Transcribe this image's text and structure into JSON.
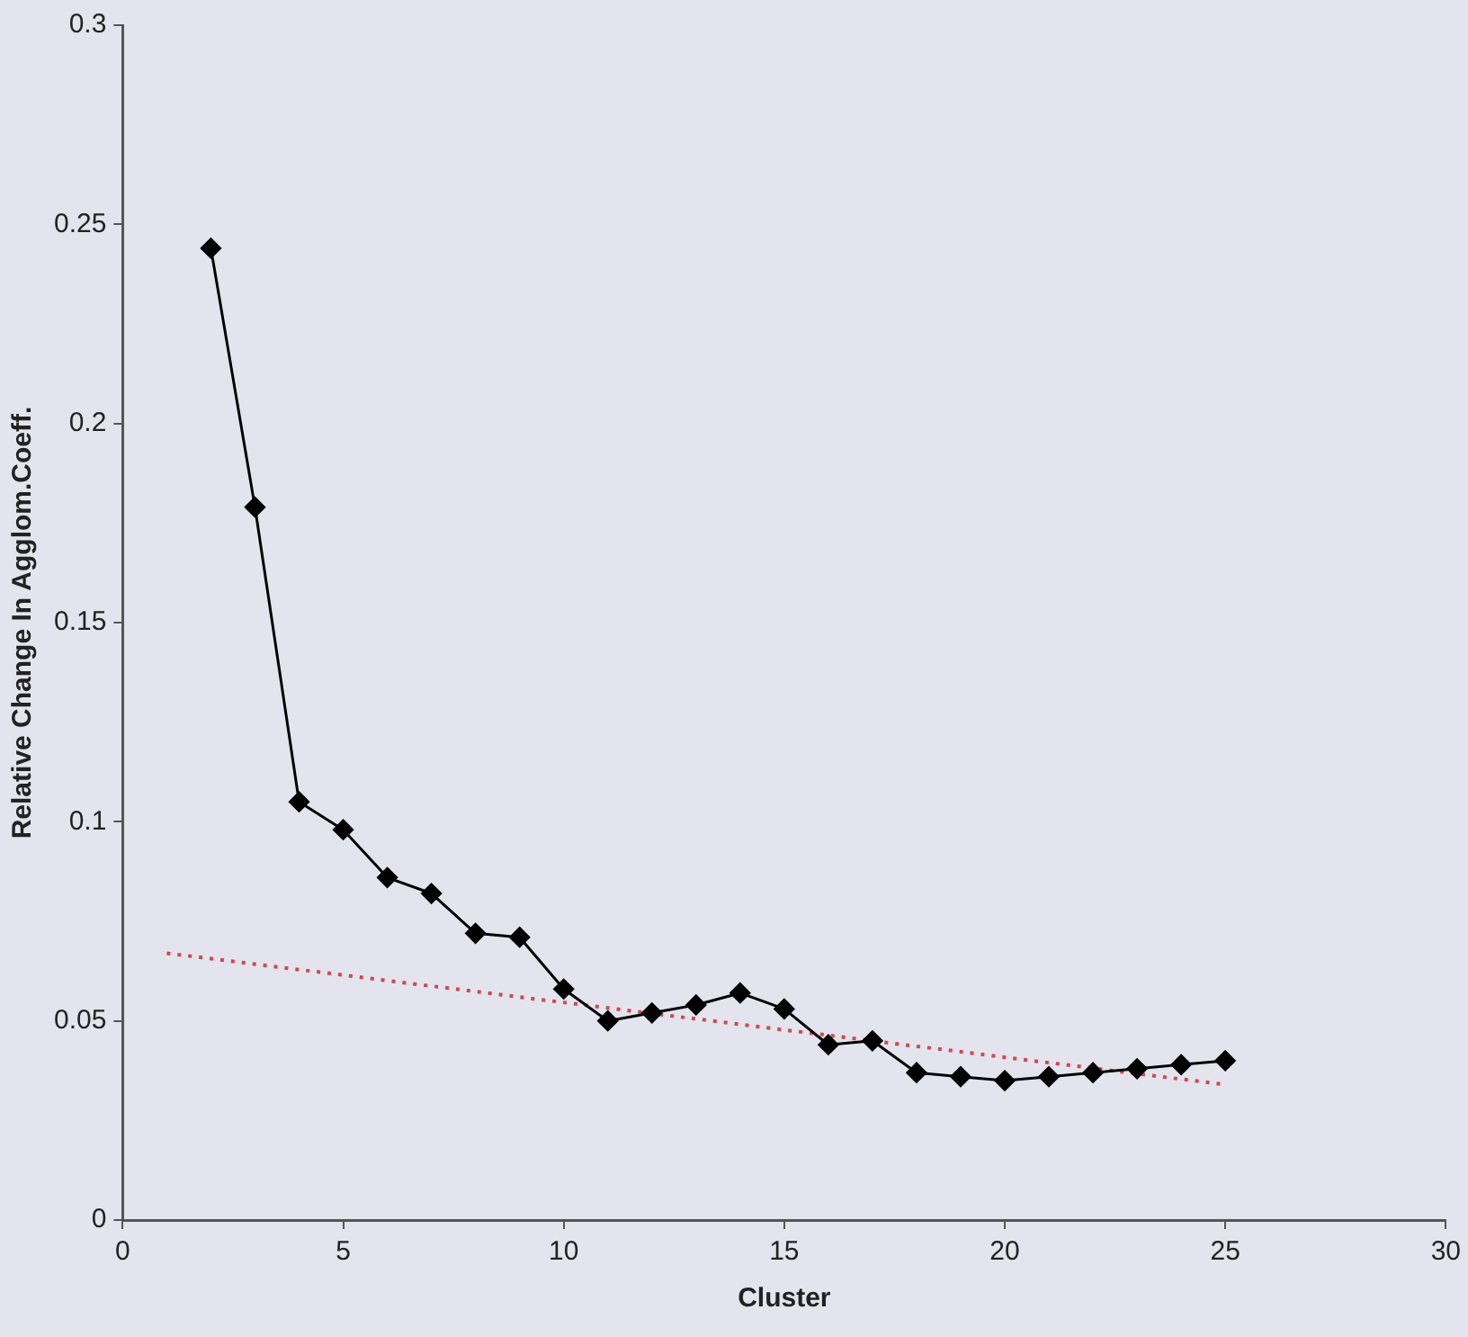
{
  "chart_data": {
    "type": "line",
    "xlabel": "Cluster",
    "ylabel": "Relative Change In Agglom.Coeff.",
    "xlim": [
      0,
      30
    ],
    "xticks": [
      0,
      5,
      10,
      15,
      20,
      25,
      30
    ],
    "ylim": [
      0,
      0.3
    ],
    "yticks": [
      0,
      0.05,
      0.1,
      0.15,
      0.2,
      0.25,
      0.3
    ],
    "grid": false,
    "legend": false,
    "series": [
      {
        "color": "#000000",
        "marker": "diamond",
        "line_style": "solid",
        "x": [
          2,
          3,
          4,
          5,
          6,
          7,
          8,
          9,
          10,
          11,
          12,
          13,
          14,
          15,
          16,
          17,
          18,
          19,
          20,
          21,
          22,
          23,
          24,
          25
        ],
        "values": [
          0.244,
          0.179,
          0.105,
          0.098,
          0.086,
          0.082,
          0.072,
          0.071,
          0.058,
          0.05,
          0.052,
          0.054,
          0.057,
          0.053,
          0.044,
          0.045,
          0.037,
          0.036,
          0.035,
          0.036,
          0.037,
          0.038,
          0.039,
          0.04
        ]
      },
      {
        "color": "#d04848",
        "marker": "none",
        "line_style": "dotted",
        "x": [
          1,
          25
        ],
        "values": [
          0.067,
          0.034
        ]
      }
    ]
  }
}
